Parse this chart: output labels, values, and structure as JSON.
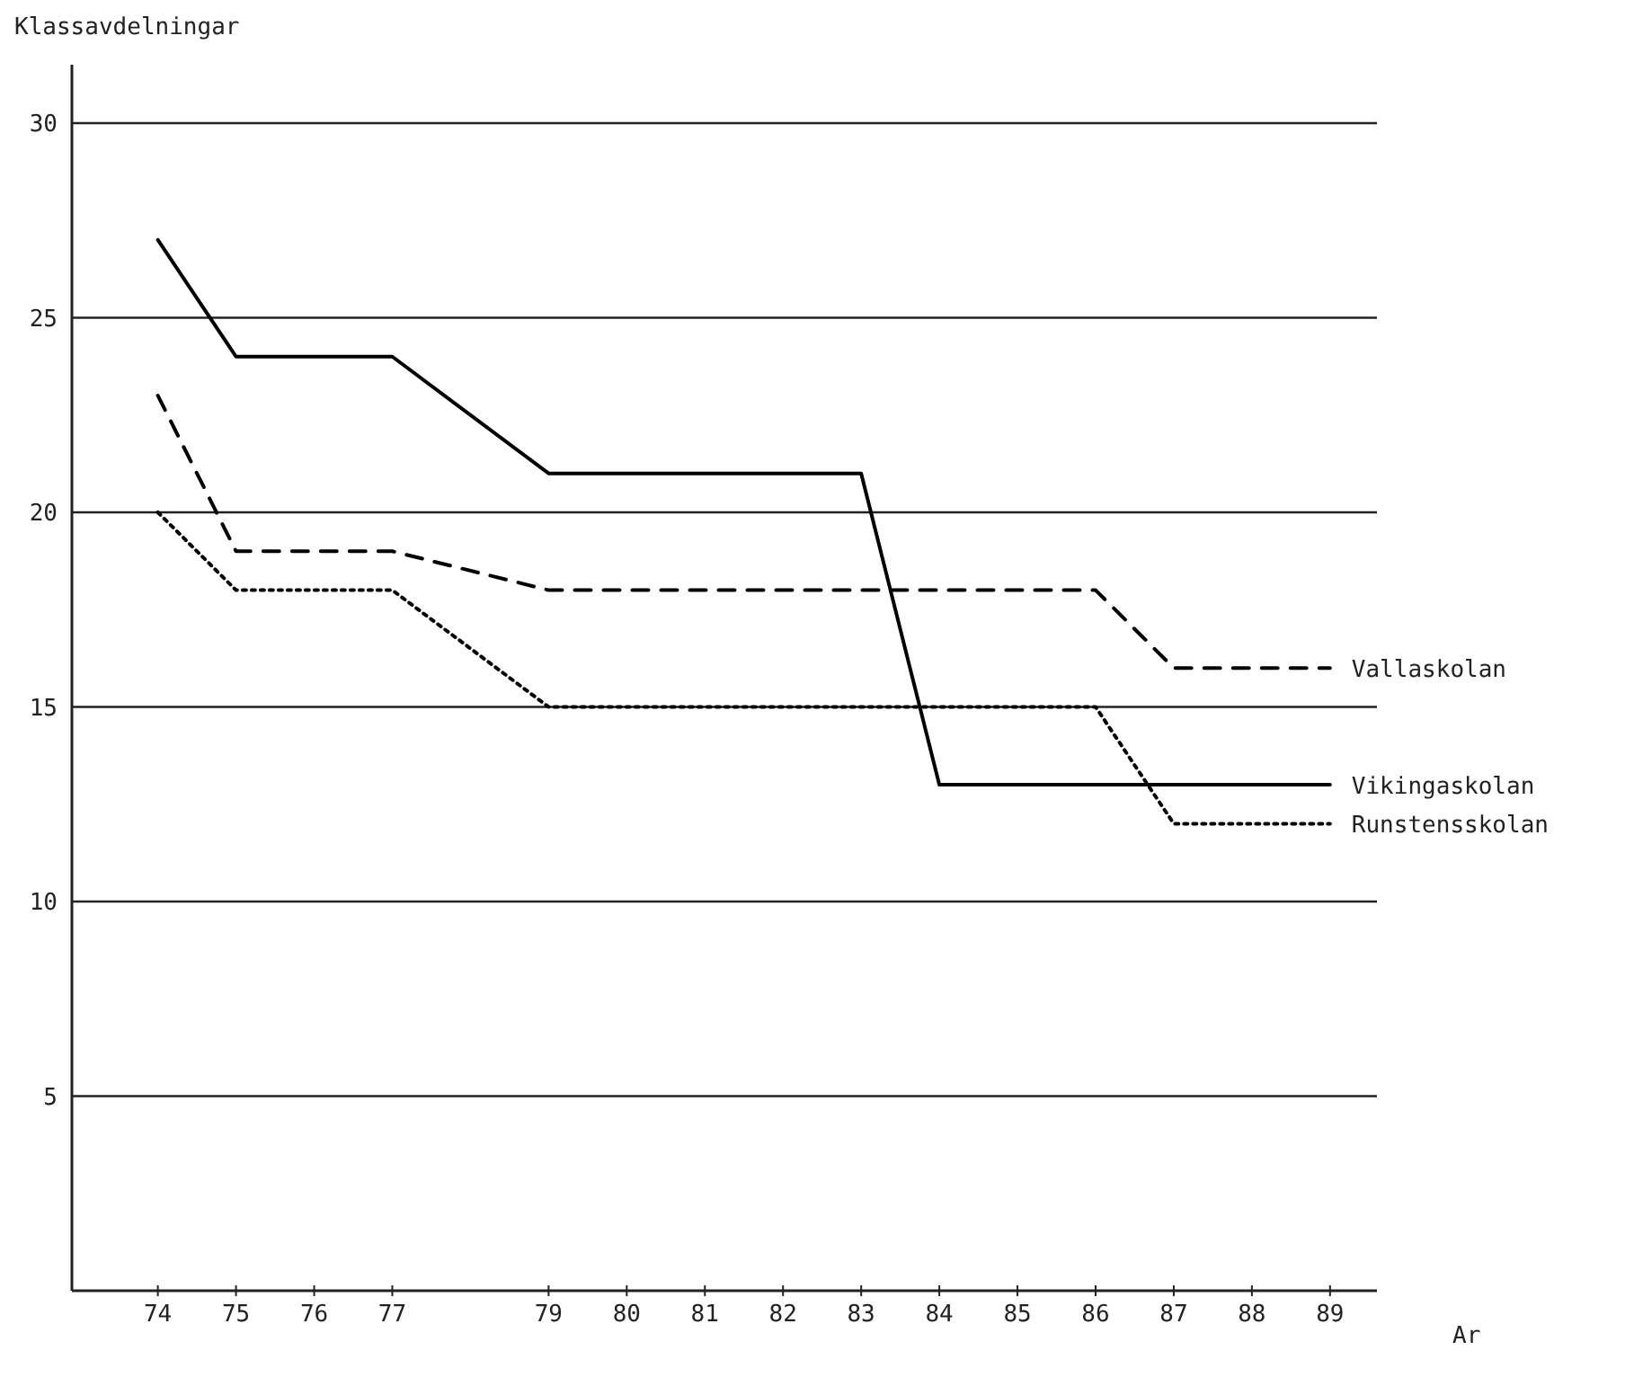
{
  "chart_data": {
    "type": "line",
    "ylabel": "Klassavdelningar",
    "xlabel": "Ar",
    "x": [
      74,
      75,
      76,
      77,
      79,
      80,
      81,
      82,
      83,
      84,
      85,
      86,
      87,
      88,
      89
    ],
    "series": [
      {
        "name": "Vikingaskolan",
        "color": "#000000",
        "line_style": "solid",
        "values": [
          27,
          24,
          24,
          24,
          21,
          21,
          21,
          21,
          21,
          13,
          13,
          13,
          13,
          13,
          13
        ]
      },
      {
        "name": "Vallaskolan",
        "color": "#000000",
        "line_style": "dashed",
        "values": [
          23,
          19,
          19,
          19,
          18,
          18,
          18,
          18,
          18,
          18,
          18,
          18,
          16,
          16,
          16
        ]
      },
      {
        "name": "Runstensskolan",
        "color": "#000000",
        "line_style": "dotted",
        "values": [
          20,
          18,
          18,
          18,
          15,
          15,
          15,
          15,
          15,
          15,
          15,
          15,
          12,
          12,
          12
        ]
      }
    ],
    "xlim": [
      72.9,
      89.6
    ],
    "xticks": [
      74,
      75,
      76,
      77,
      79,
      80,
      81,
      82,
      83,
      84,
      85,
      86,
      87,
      88,
      89
    ],
    "ylim": [
      0,
      31.5
    ],
    "yticks": [
      5,
      10,
      15,
      20,
      25,
      30
    ],
    "grid": "y",
    "marker": "none"
  }
}
